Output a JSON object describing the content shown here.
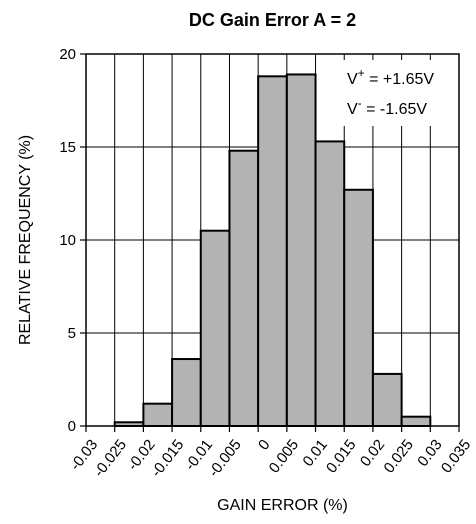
{
  "chart_data": {
    "type": "bar",
    "title": "DC Gain Error A = 2",
    "xlabel": "GAIN ERROR (%)",
    "ylabel": "RELATIVE FREQUENCY (%)",
    "xlim": [
      -0.03,
      0.035
    ],
    "ylim": [
      0,
      20
    ],
    "x_ticks": [
      "-0.03",
      "-0.025",
      "-0.02",
      "-0.015",
      "-0.01",
      "-0.005",
      "0",
      "0.005",
      "0.01",
      "0.015",
      "0.02",
      "0.025",
      "0.03",
      "0.035"
    ],
    "y_ticks": [
      "0",
      "5",
      "10",
      "15",
      "20"
    ],
    "bin_width": 0.005,
    "bins": [
      {
        "start": -0.025,
        "value": 0.2
      },
      {
        "start": -0.02,
        "value": 1.2
      },
      {
        "start": -0.015,
        "value": 3.6
      },
      {
        "start": -0.01,
        "value": 10.5
      },
      {
        "start": -0.005,
        "value": 14.8
      },
      {
        "start": 0.0,
        "value": 18.8
      },
      {
        "start": 0.005,
        "value": 18.9
      },
      {
        "start": 0.01,
        "value": 15.3
      },
      {
        "start": 0.015,
        "value": 12.7
      },
      {
        "start": 0.02,
        "value": 2.8
      },
      {
        "start": 0.025,
        "value": 0.5
      }
    ],
    "grid": true,
    "annotations": [
      {
        "main": "V",
        "sup": "+",
        "rest": " = +1.65V"
      },
      {
        "main": "V",
        "sup": "-",
        "rest": " = -1.65V"
      }
    ],
    "colors": {
      "bar_fill": "#b3b3b3",
      "bar_stroke": "#000000",
      "grid": "#000000"
    }
  }
}
